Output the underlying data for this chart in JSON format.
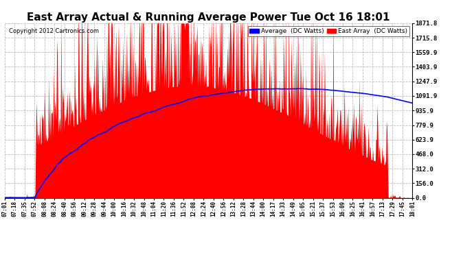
{
  "title": "East Array Actual & Running Average Power Tue Oct 16 18:01",
  "copyright": "Copyright 2012 Cartronics.com",
  "legend_avg": "Average  (DC Watts)",
  "legend_east": "East Array  (DC Watts)",
  "yticks": [
    0.0,
    156.0,
    312.0,
    468.0,
    623.9,
    779.9,
    935.9,
    1091.9,
    1247.9,
    1403.9,
    1559.9,
    1715.8,
    1871.8
  ],
  "ymax": 1871.8,
  "bg_color": "#ffffff",
  "fill_color": "#ff0000",
  "line_color": "#0000ff",
  "grid_color": "#bbbbbb",
  "title_fontsize": 11,
  "copyright_fontsize": 7,
  "xtick_labels": [
    "07:01",
    "07:18",
    "07:35",
    "07:52",
    "08:08",
    "08:24",
    "08:40",
    "08:56",
    "09:12",
    "09:28",
    "09:44",
    "10:00",
    "10:16",
    "10:32",
    "10:48",
    "11:04",
    "11:20",
    "11:36",
    "11:52",
    "12:08",
    "12:24",
    "12:40",
    "12:56",
    "13:12",
    "13:28",
    "13:44",
    "14:00",
    "14:17",
    "14:33",
    "14:49",
    "15:05",
    "15:21",
    "15:37",
    "15:53",
    "16:09",
    "16:25",
    "16:41",
    "16:57",
    "17:13",
    "17:29",
    "17:45",
    "18:01"
  ]
}
